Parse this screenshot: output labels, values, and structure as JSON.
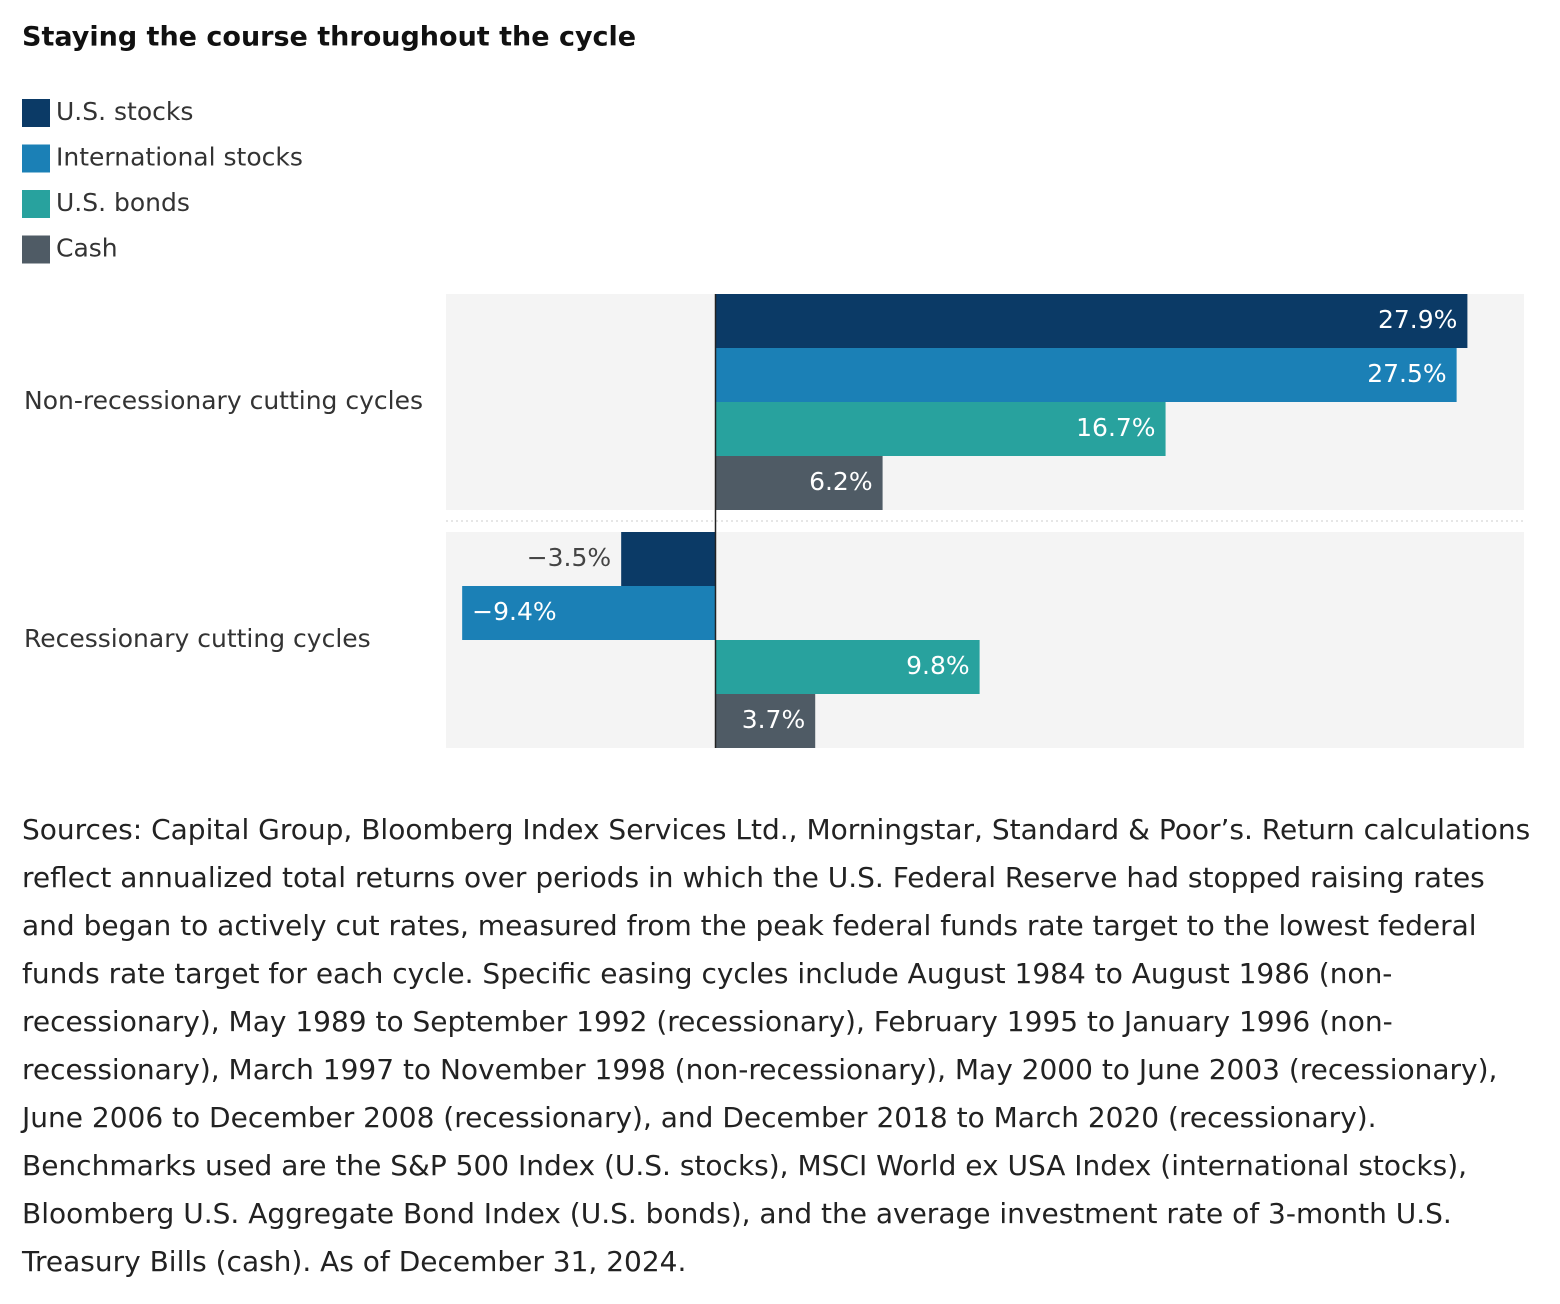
{
  "chart_data": {
    "type": "bar",
    "orientation": "horizontal",
    "title": "Staying the course throughout the cycle",
    "categories": [
      "Non-recessionary cutting cycles",
      "Recessionary cutting cycles"
    ],
    "series": [
      {
        "name": "U.S. stocks",
        "color": "#0b3a66",
        "values": [
          27.9,
          -3.5
        ],
        "value_labels": [
          "27.9%",
          "−3.5%"
        ]
      },
      {
        "name": "International stocks",
        "color": "#1b80b6",
        "values": [
          27.5,
          -9.4
        ],
        "value_labels": [
          "27.5%",
          "−9.4%"
        ]
      },
      {
        "name": "U.S. bonds",
        "color": "#28a29e",
        "values": [
          16.7,
          9.8
        ],
        "value_labels": [
          "16.7%",
          "9.8%"
        ]
      },
      {
        "name": "Cash",
        "color": "#4f5b65",
        "values": [
          6.2,
          3.7
        ],
        "value_labels": [
          "6.2%",
          "3.7%"
        ]
      }
    ],
    "xlim": [
      -10,
      30
    ],
    "legend": "top-left",
    "source": "Sources: Capital Group, Bloomberg Index Services Ltd., Morningstar, Standard & Poor’s. Return calculations reflect annualized total returns over periods in which the U.S. Federal Reserve had stopped raising rates and began to actively cut rates, measured from the peak federal funds rate target to the lowest federal funds rate target for each cycle. Specific easing cycles include August 1984 to August 1986 (non-recessionary), May 1989 to September 1992 (recessionary), February 1995 to January 1996 (non-recessionary), March 1997 to November 1998 (non-recessionary), May 2000 to June 2003 (recessionary), June 2006 to December 2008 (recessionary), and December 2018 to March 2020 (recessionary). Benchmarks used are the S&P 500 Index (U.S. stocks), MSCI World ex USA Index (international stocks), Bloomberg U.S. Aggregate Bond Index (U.S. bonds), and the average investment rate of 3-month U.S. Treasury Bills (cash). As of December 31, 2024."
  }
}
